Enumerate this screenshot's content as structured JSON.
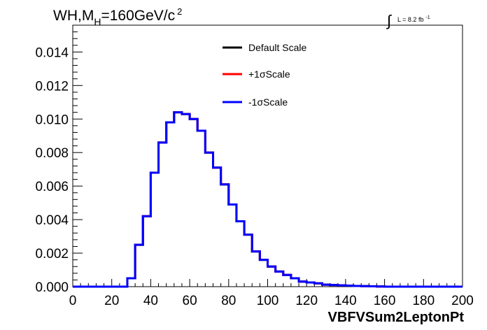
{
  "chart_data": {
    "type": "line",
    "title": {
      "prefix": "WH,M",
      "subscript": "H",
      "middle": "=160GeV/c",
      "superscript": "2"
    },
    "luminosity": {
      "integral_symbol": "∫",
      "text": "L = 8.2 fb",
      "superscript": "-1"
    },
    "xlabel": "VBFVSum2LeptonPt",
    "ylabel": "",
    "xlim": [
      0,
      200
    ],
    "ylim": [
      0,
      0.0156
    ],
    "x_ticks": [
      "0",
      "20",
      "40",
      "60",
      "80",
      "100",
      "120",
      "140",
      "160",
      "180",
      "200"
    ],
    "y_ticks": [
      "0.000",
      "0.002",
      "0.004",
      "0.006",
      "0.008",
      "0.010",
      "0.012",
      "0.014"
    ],
    "legend_position": "top-center",
    "bin_edges": [
      0,
      5,
      10,
      15,
      20,
      25,
      28,
      32,
      36,
      40,
      44,
      48,
      52,
      56,
      60,
      64,
      68,
      72,
      76,
      80,
      84,
      88,
      92,
      96,
      100,
      104,
      108,
      112,
      116,
      120,
      124,
      128,
      132,
      136,
      140,
      144,
      148,
      152,
      156,
      160,
      200
    ],
    "series": [
      {
        "name": "Default Scale",
        "color": "#000000",
        "values": [
          0,
          0,
          0,
          0,
          0,
          0,
          0.0005,
          0.0025,
          0.0042,
          0.0068,
          0.0086,
          0.0098,
          0.0104,
          0.0103,
          0.01,
          0.0093,
          0.008,
          0.0071,
          0.0061,
          0.0049,
          0.0039,
          0.0031,
          0.0021,
          0.0016,
          0.0012,
          0.0009,
          0.0007,
          0.0005,
          0.0003,
          0.00025,
          0.0002,
          0.00012,
          0.0001,
          8e-05,
          6e-05,
          4e-05,
          3e-05,
          2e-05,
          1e-05,
          0
        ]
      },
      {
        "name": "+1σScale",
        "color": "#ff0000",
        "values": [
          0,
          0,
          0,
          0,
          0,
          0,
          0.0005,
          0.0025,
          0.0042,
          0.0068,
          0.0086,
          0.0098,
          0.0104,
          0.0103,
          0.01,
          0.0093,
          0.008,
          0.0071,
          0.0061,
          0.0049,
          0.0039,
          0.0031,
          0.0021,
          0.0016,
          0.0012,
          0.0009,
          0.0007,
          0.0005,
          0.0003,
          0.00025,
          0.0002,
          0.00012,
          0.0001,
          8e-05,
          6e-05,
          4e-05,
          3e-05,
          2e-05,
          1e-05,
          0
        ]
      },
      {
        "name": "-1σScale",
        "color": "#0000ff",
        "values": [
          0,
          0,
          0,
          0,
          0,
          0,
          0.0005,
          0.0025,
          0.0042,
          0.0068,
          0.0086,
          0.0098,
          0.0104,
          0.0103,
          0.01,
          0.0093,
          0.008,
          0.0071,
          0.0061,
          0.0049,
          0.0039,
          0.0031,
          0.0021,
          0.0016,
          0.0012,
          0.0009,
          0.0007,
          0.0005,
          0.0003,
          0.00025,
          0.0002,
          0.00012,
          0.0001,
          8e-05,
          6e-05,
          4e-05,
          3e-05,
          2e-05,
          1e-05,
          0
        ]
      }
    ]
  }
}
